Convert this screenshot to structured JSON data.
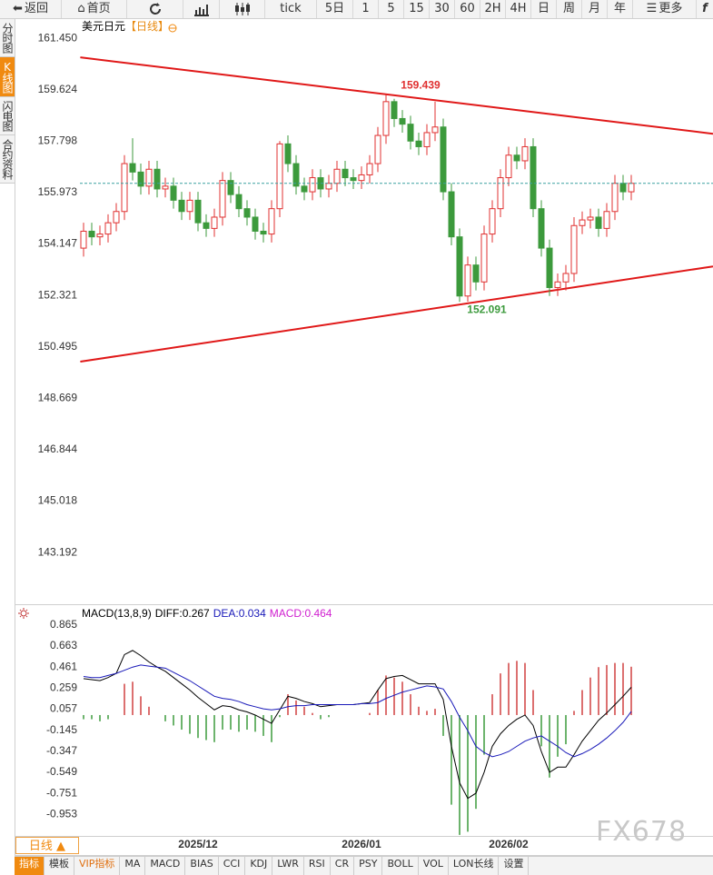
{
  "toolbar": {
    "back": "返回",
    "home": "首页",
    "items": [
      "tick",
      "5日",
      "1",
      "5",
      "15",
      "30",
      "60",
      "2H",
      "4H",
      "日",
      "周",
      "月",
      "年"
    ],
    "more": "更多",
    "last": "f"
  },
  "sidebar": {
    "items": [
      "分时图",
      "K线图",
      "闪电图",
      "合约资料"
    ],
    "active": 1
  },
  "chart_data": [
    {
      "type": "candlestick",
      "title": "美元日元",
      "subtitle": "【日线】",
      "categories": [
        null,
        null,
        null,
        null,
        null,
        null,
        null,
        null,
        null,
        null,
        null,
        null,
        null,
        null,
        "2025/12",
        null,
        null,
        null,
        null,
        null,
        null,
        null,
        null,
        null,
        null,
        null,
        null,
        null,
        null,
        null,
        null,
        null,
        null,
        null,
        "2026/01",
        null,
        null,
        null,
        null,
        null,
        null,
        null,
        null,
        null,
        null,
        null,
        null,
        null,
        null,
        null,
        null,
        null,
        "2026/02",
        null,
        null,
        null,
        null,
        null,
        null,
        null,
        null,
        null,
        null,
        null,
        null,
        null,
        null,
        null
      ],
      "open": [
        154.0,
        154.6,
        154.4,
        154.5,
        154.9,
        155.3,
        157.0,
        156.7,
        156.2,
        156.8,
        156.1,
        156.2,
        155.7,
        155.3,
        155.7,
        154.9,
        154.7,
        155.1,
        156.4,
        155.9,
        155.4,
        155.1,
        154.6,
        154.5,
        155.4,
        157.7,
        157.0,
        156.2,
        156.0,
        156.5,
        156.1,
        156.3,
        156.8,
        156.5,
        156.4,
        156.6,
        157.0,
        158.0,
        159.2,
        158.6,
        158.4,
        157.8,
        157.6,
        158.1,
        158.3,
        156.0,
        154.4,
        152.3,
        153.4,
        152.8,
        154.5,
        155.4,
        156.5,
        157.3,
        157.1,
        157.6,
        155.4,
        154.0,
        152.6,
        152.8,
        153.1,
        154.8,
        155.0,
        155.1,
        154.7,
        155.3,
        156.3,
        156.0
      ],
      "high": [
        154.9,
        154.9,
        154.8,
        155.2,
        155.6,
        157.3,
        157.9,
        157.0,
        157.1,
        157.1,
        156.5,
        156.5,
        156.0,
        156.0,
        156.0,
        155.2,
        155.4,
        156.7,
        156.7,
        156.2,
        155.7,
        155.4,
        154.9,
        155.7,
        157.8,
        158.0,
        157.3,
        156.5,
        156.8,
        156.8,
        156.6,
        157.1,
        157.1,
        156.8,
        156.9,
        157.3,
        158.3,
        159.439,
        159.3,
        158.9,
        158.7,
        158.1,
        158.4,
        159.2,
        158.6,
        156.3,
        154.7,
        153.7,
        153.7,
        154.8,
        155.7,
        156.8,
        157.6,
        157.6,
        157.9,
        157.9,
        155.7,
        154.3,
        153.1,
        153.4,
        155.1,
        155.3,
        155.4,
        155.4,
        155.6,
        156.6,
        156.6,
        156.6
      ],
      "low": [
        153.7,
        154.1,
        154.1,
        154.2,
        154.6,
        155.0,
        156.4,
        155.9,
        155.9,
        155.8,
        155.8,
        155.4,
        155.0,
        155.0,
        154.6,
        154.4,
        154.4,
        154.8,
        155.6,
        155.1,
        154.8,
        154.3,
        154.2,
        154.2,
        155.1,
        156.7,
        155.9,
        155.7,
        155.7,
        155.8,
        155.8,
        156.0,
        156.2,
        156.1,
        156.1,
        156.3,
        156.7,
        157.7,
        158.3,
        158.1,
        157.5,
        157.3,
        157.3,
        157.8,
        155.7,
        154.1,
        152.091,
        152.1,
        152.5,
        152.5,
        154.2,
        155.1,
        156.2,
        156.8,
        156.8,
        155.1,
        153.7,
        152.3,
        152.3,
        152.5,
        152.8,
        154.5,
        154.7,
        154.4,
        154.4,
        155.0,
        155.7,
        155.7
      ],
      "close": [
        154.6,
        154.4,
        154.5,
        154.9,
        155.3,
        157.0,
        156.7,
        156.2,
        156.8,
        156.1,
        156.2,
        155.7,
        155.3,
        155.7,
        154.9,
        154.7,
        155.1,
        156.4,
        155.9,
        155.4,
        155.1,
        154.6,
        154.5,
        155.4,
        157.7,
        157.0,
        156.2,
        156.0,
        156.5,
        156.1,
        156.3,
        156.8,
        156.5,
        156.4,
        156.6,
        157.0,
        158.0,
        159.2,
        158.6,
        158.4,
        157.8,
        157.6,
        158.1,
        158.3,
        156.0,
        154.4,
        152.3,
        153.4,
        152.8,
        154.5,
        155.4,
        156.5,
        157.3,
        157.1,
        157.6,
        155.4,
        154.0,
        152.6,
        152.8,
        153.1,
        154.8,
        155.0,
        155.1,
        154.7,
        155.3,
        156.3,
        156.0,
        156.3
      ],
      "up_color": "#e03030",
      "down_color": "#3c9a3c",
      "title_color": "#e88a10",
      "ylim": [
        141.52,
        161.84
      ],
      "yticks": [
        {
          "value": 161.45,
          "label": "161.450"
        },
        159.624,
        157.798,
        155.973,
        154.147,
        152.321,
        150.495,
        148.669,
        146.844,
        145.018,
        143.192
      ],
      "trendlines": [
        {
          "color": "#e01818",
          "x": [
            -0.4,
            77
          ],
          "values": [
            160.77,
            158.06
          ]
        },
        {
          "color": "#e01818",
          "x": [
            -0.4,
            77
          ],
          "values": [
            149.97,
            153.35
          ]
        }
      ],
      "last_price_color": "#3aa0a0"
    },
    {
      "type": "macd",
      "title": "MACD(13,8,9)",
      "series": [
        {
          "name": "DIFF:",
          "color": "#000000",
          "values": [
            0.35,
            0.34,
            0.33,
            0.36,
            0.4,
            0.58,
            0.62,
            0.57,
            0.51,
            0.46,
            0.42,
            0.36,
            0.3,
            0.24,
            0.17,
            0.11,
            0.05,
            0.09,
            0.08,
            0.05,
            0.03,
            0.0,
            -0.04,
            -0.08,
            0.05,
            0.18,
            0.16,
            0.13,
            0.11,
            0.08,
            0.09,
            0.1,
            0.1,
            0.1,
            0.11,
            0.12,
            0.24,
            0.35,
            0.37,
            0.38,
            0.34,
            0.3,
            0.3,
            0.3,
            0.15,
            -0.3,
            -0.65,
            -0.8,
            -0.75,
            -0.55,
            -0.3,
            -0.18,
            -0.1,
            -0.04,
            0.0,
            -0.1,
            -0.35,
            -0.55,
            -0.5,
            -0.5,
            -0.38,
            -0.25,
            -0.15,
            -0.05,
            0.02,
            0.1,
            0.18,
            0.267
          ]
        },
        {
          "name": "DEA:",
          "color": "#1818b8",
          "values": [
            0.37,
            0.36,
            0.36,
            0.38,
            0.4,
            0.43,
            0.46,
            0.48,
            0.47,
            0.46,
            0.45,
            0.41,
            0.37,
            0.33,
            0.28,
            0.23,
            0.18,
            0.16,
            0.15,
            0.13,
            0.1,
            0.08,
            0.06,
            0.05,
            0.06,
            0.08,
            0.09,
            0.09,
            0.1,
            0.1,
            0.1,
            0.1,
            0.1,
            0.1,
            0.11,
            0.11,
            0.12,
            0.16,
            0.19,
            0.22,
            0.24,
            0.26,
            0.28,
            0.27,
            0.25,
            0.13,
            -0.02,
            -0.15,
            -0.3,
            -0.36,
            -0.4,
            -0.38,
            -0.35,
            -0.3,
            -0.25,
            -0.22,
            -0.2,
            -0.25,
            -0.3,
            -0.36,
            -0.4,
            -0.37,
            -0.33,
            -0.28,
            -0.22,
            -0.15,
            -0.07,
            0.034
          ]
        },
        {
          "name": "MACD:",
          "color": "#d020d0",
          "type": "histogram",
          "up_color": "#d04040",
          "down_color": "#3c9a3c",
          "values": [
            -0.04,
            -0.04,
            -0.06,
            -0.04,
            0.0,
            0.3,
            0.32,
            0.18,
            0.08,
            0.0,
            -0.06,
            -0.1,
            -0.14,
            -0.18,
            -0.22,
            -0.24,
            -0.26,
            -0.14,
            -0.14,
            -0.16,
            -0.14,
            -0.16,
            -0.2,
            -0.26,
            -0.02,
            0.2,
            0.14,
            0.08,
            0.02,
            -0.04,
            -0.02,
            0.0,
            0.0,
            0.0,
            0.0,
            0.02,
            0.24,
            0.38,
            0.36,
            0.32,
            0.2,
            0.08,
            0.04,
            0.06,
            -0.2,
            -0.86,
            -1.15,
            -1.12,
            -0.9,
            -0.38,
            0.2,
            0.4,
            0.5,
            0.52,
            0.5,
            0.24,
            -0.3,
            -0.6,
            -0.4,
            -0.28,
            0.04,
            0.24,
            0.36,
            0.46,
            0.48,
            0.5,
            0.5,
            0.464
          ]
        }
      ],
      "ylim": [
        -1.16,
        1.02
      ],
      "yticks": [
        0.865,
        0.663,
        0.461,
        0.259,
        0.057,
        -0.145,
        -0.347,
        -0.549,
        -0.751,
        -0.953
      ]
    }
  ],
  "period_tab": "日线 ▲",
  "bottom_tabs": {
    "items": [
      "指标",
      "模板",
      "VIP指标",
      "MA",
      "MACD",
      "BIAS",
      "CCI",
      "KDJ",
      "LWR",
      "RSI",
      "CR",
      "PSY",
      "BOLL",
      "VOL",
      "LON长线",
      "设置"
    ],
    "active": 0
  },
  "watermark": "FX678"
}
